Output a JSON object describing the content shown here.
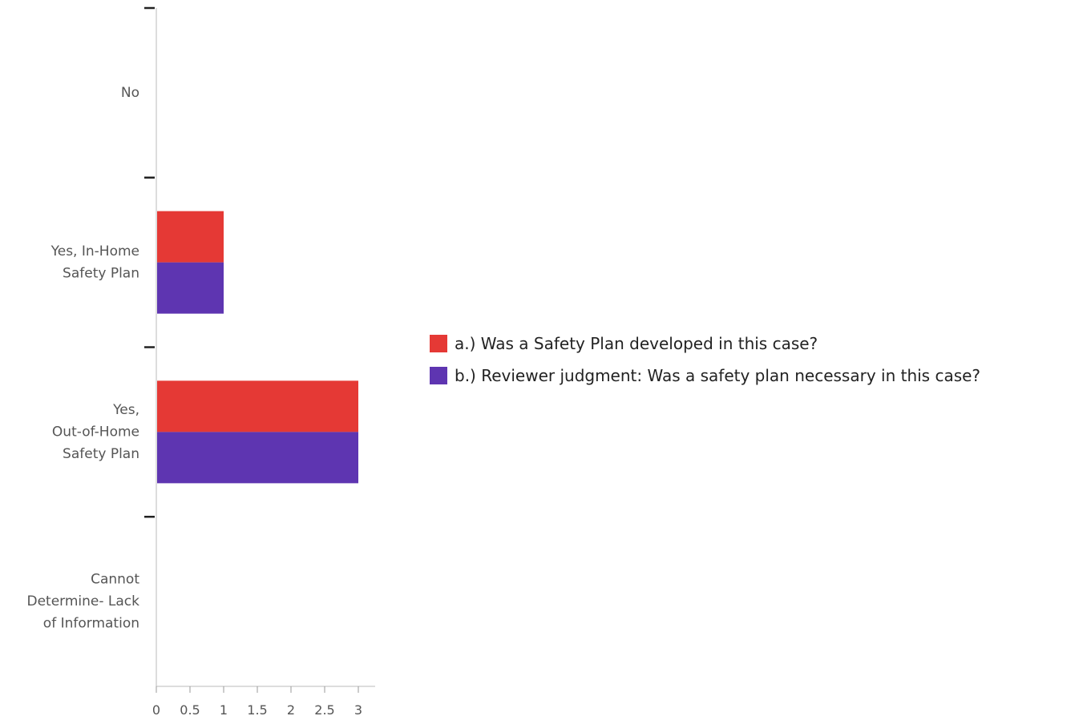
{
  "chart_data": {
    "type": "bar",
    "orientation": "horizontal",
    "categories": [
      [
        "No"
      ],
      [
        "Yes, In-Home",
        "Safety Plan"
      ],
      [
        "Yes,",
        "Out-of-Home",
        "Safety Plan"
      ],
      [
        "Cannot",
        "Determine- Lack",
        "of Information"
      ]
    ],
    "series": [
      {
        "name": "a.) Was a Safety Plan developed in this case?",
        "color": "#e53935",
        "values": [
          0,
          1,
          3,
          0
        ]
      },
      {
        "name": "b.) Reviewer judgment: Was a safety plan necessary in this case?",
        "color": "#5e35b1",
        "values": [
          0,
          1,
          3,
          0
        ]
      }
    ],
    "x_ticks": [
      "0",
      "0.5",
      "1",
      "1.5",
      "2",
      "2.5",
      "3"
    ],
    "xlim": [
      0,
      3.25
    ],
    "xlabel": "",
    "ylabel": "",
    "title": "",
    "grid": false,
    "legend_position": "right"
  }
}
